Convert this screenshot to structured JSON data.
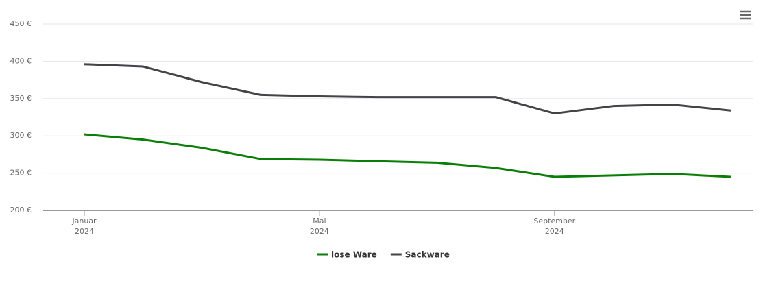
{
  "chart_data": {
    "type": "line",
    "x": [
      "2024-01",
      "2024-02",
      "2024-03",
      "2024-04",
      "2024-05",
      "2024-06",
      "2024-07",
      "2024-08",
      "2024-09",
      "2024-10",
      "2024-11",
      "2024-12"
    ],
    "series": [
      {
        "name": "lose Ware",
        "color": "#0a7e07",
        "values": [
          302,
          295,
          284,
          269,
          268,
          266,
          264,
          257,
          245,
          247,
          249,
          245
        ]
      },
      {
        "name": "Sackware",
        "color": "#434348",
        "values": [
          396,
          393,
          372,
          355,
          353,
          352,
          352,
          352,
          330,
          340,
          342,
          334
        ]
      }
    ],
    "xlim": [
      "2024-01",
      "2024-12"
    ],
    "xticks": [
      {
        "value": "2024-01",
        "label": [
          "Januar",
          "2024"
        ]
      },
      {
        "value": "2024-05",
        "label": [
          "Mai",
          "2024"
        ]
      },
      {
        "value": "2024-09",
        "label": [
          "September",
          "2024"
        ]
      }
    ],
    "ylim": [
      200,
      450
    ],
    "yticks": [
      {
        "value": 200,
        "label": "200 €"
      },
      {
        "value": 250,
        "label": "250 €"
      },
      {
        "value": 300,
        "label": "300 €"
      },
      {
        "value": 350,
        "label": "350 €"
      },
      {
        "value": 400,
        "label": "400 €"
      },
      {
        "value": 450,
        "label": "450 €"
      }
    ],
    "grid": true,
    "legend": "bottom"
  }
}
